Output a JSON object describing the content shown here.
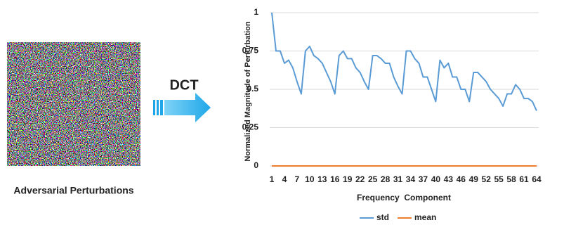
{
  "image_caption": "Adversarial Perturbations",
  "transform_label": "DCT",
  "chart_data": {
    "type": "line",
    "y_label": "Normalized Magnitude of Perturbation",
    "x_label": "Frequency  Component",
    "x": [
      1,
      2,
      3,
      4,
      5,
      6,
      7,
      8,
      9,
      10,
      11,
      12,
      13,
      14,
      15,
      16,
      17,
      18,
      19,
      20,
      21,
      22,
      23,
      24,
      25,
      26,
      27,
      28,
      29,
      30,
      31,
      32,
      33,
      34,
      35,
      36,
      37,
      38,
      39,
      40,
      41,
      42,
      43,
      44,
      45,
      46,
      47,
      48,
      49,
      50,
      51,
      52,
      53,
      54,
      55,
      56,
      57,
      58,
      59,
      60,
      61,
      62,
      63,
      64
    ],
    "xlim": [
      0.5,
      64.5
    ],
    "xticks": [
      1,
      4,
      7,
      10,
      13,
      16,
      19,
      22,
      25,
      28,
      31,
      34,
      37,
      40,
      43,
      46,
      49,
      52,
      55,
      58,
      61,
      64
    ],
    "ylim": [
      0,
      1
    ],
    "yticks": [
      0,
      0.25,
      0.5,
      0.75,
      1
    ],
    "grid": true,
    "legend": "bottom",
    "series": [
      {
        "name": "std",
        "color": "#5b9bd5",
        "values": [
          1.0,
          0.75,
          0.75,
          0.67,
          0.69,
          0.64,
          0.55,
          0.47,
          0.75,
          0.78,
          0.72,
          0.7,
          0.67,
          0.61,
          0.55,
          0.47,
          0.72,
          0.75,
          0.7,
          0.7,
          0.64,
          0.61,
          0.55,
          0.5,
          0.72,
          0.72,
          0.7,
          0.67,
          0.67,
          0.58,
          0.52,
          0.47,
          0.75,
          0.75,
          0.7,
          0.67,
          0.58,
          0.58,
          0.5,
          0.42,
          0.69,
          0.64,
          0.67,
          0.58,
          0.58,
          0.5,
          0.5,
          0.42,
          0.61,
          0.61,
          0.58,
          0.55,
          0.5,
          0.47,
          0.44,
          0.39,
          0.47,
          0.47,
          0.53,
          0.5,
          0.44,
          0.44,
          0.42,
          0.36
        ]
      },
      {
        "name": "mean",
        "color": "#ed7d31",
        "values": [
          0,
          0,
          0,
          0,
          0,
          0,
          0,
          0,
          0,
          0,
          0,
          0,
          0,
          0,
          0,
          0,
          0,
          0,
          0,
          0,
          0,
          0,
          0,
          0,
          0,
          0,
          0,
          0,
          0,
          0,
          0,
          0,
          0,
          0,
          0,
          0,
          0,
          0,
          0,
          0,
          0,
          0,
          0,
          0,
          0,
          0,
          0,
          0,
          0,
          0,
          0,
          0,
          0,
          0,
          0,
          0,
          0,
          0,
          0,
          0,
          0,
          0,
          0,
          0
        ]
      }
    ]
  }
}
